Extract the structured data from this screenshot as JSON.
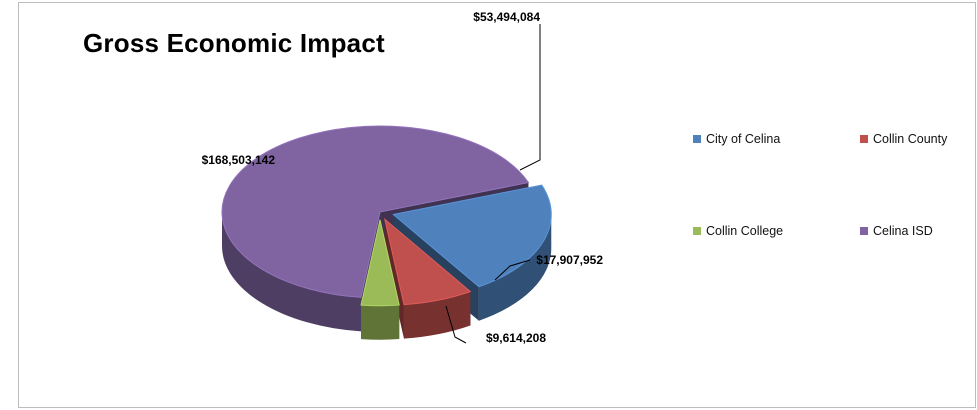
{
  "chart_data": {
    "type": "pie",
    "title": "Gross Economic Impact",
    "three_d": true,
    "legend_position": "right",
    "slices": [
      {
        "name": "City of Celina",
        "value": 53494084,
        "label": "$53,494,084",
        "color": "#4f81bd",
        "exploded": true
      },
      {
        "name": "Collin County",
        "value": 17907952,
        "label": "$17,907,952",
        "color": "#c0504d",
        "exploded": true
      },
      {
        "name": "Collin College",
        "value": 9614208,
        "label": "$9,614,208",
        "color": "#9bbb59",
        "exploded": true
      },
      {
        "name": "Celina ISD",
        "value": 168503142,
        "label": "$168,503,142",
        "color": "#8064a2",
        "exploded": false
      }
    ]
  }
}
